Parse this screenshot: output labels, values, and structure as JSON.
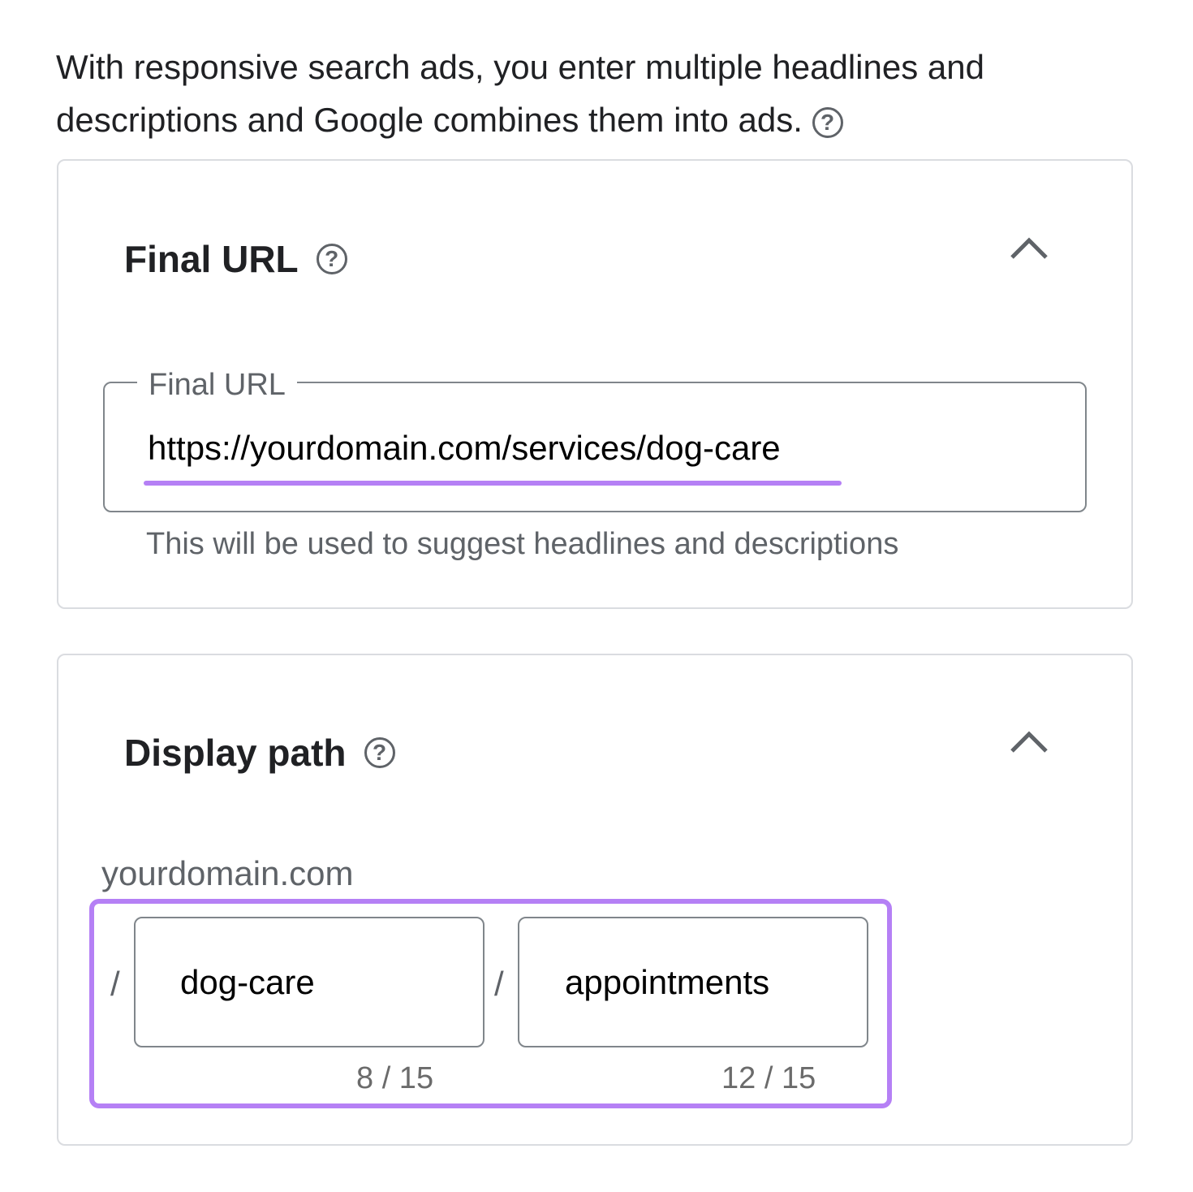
{
  "intro": {
    "text": "With responsive search ads, you enter multiple headlines and descriptions and Google combines them into ads.",
    "help_icon": "help-circle-icon"
  },
  "final_url_section": {
    "title": "Final URL",
    "help_icon": "help-circle-icon",
    "collapse_icon": "chevron-up-icon",
    "field_label": "Final URL",
    "field_value": "https://yourdomain.com/services/dog-care",
    "hint": "This will be used to suggest headlines and descriptions"
  },
  "display_path_section": {
    "title": "Display path",
    "help_icon": "help-circle-icon",
    "collapse_icon": "chevron-up-icon",
    "domain": "yourdomain.com",
    "separator": "/",
    "path1": {
      "value": "dog-care",
      "counter": "8 / 15"
    },
    "path2": {
      "value": "appointments",
      "counter": "12 / 15"
    }
  },
  "colors": {
    "highlight": "#B580F5",
    "border": "#80868b",
    "card_border": "#dadce0"
  }
}
